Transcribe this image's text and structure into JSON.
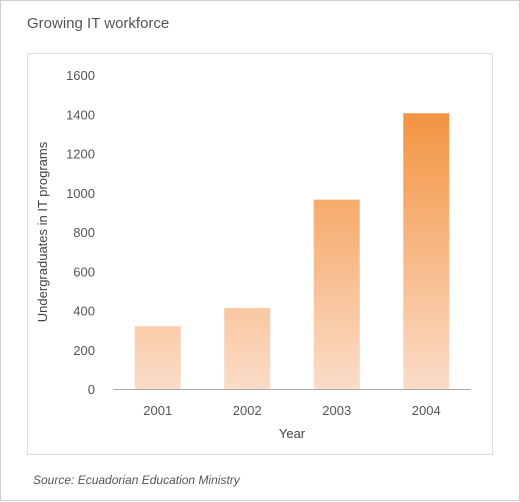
{
  "title": "Growing IT workforce",
  "source": "Source: Ecuadorian Education Ministry",
  "colors": {
    "bar_top": "#f28a2e",
    "bar_bottom": "#fbdcc8",
    "axis": "#aaaaaa",
    "text": "#555555"
  },
  "chart_data": {
    "type": "bar",
    "title": "Growing IT workforce",
    "xlabel": "Year",
    "ylabel": "Undergraduates in IT programs",
    "categories": [
      "2001",
      "2002",
      "2003",
      "2004"
    ],
    "values": [
      320,
      412,
      965,
      1405
    ],
    "ylim": [
      0,
      1600
    ],
    "yticks": [
      0,
      200,
      400,
      600,
      800,
      1000,
      1200,
      1400,
      1600
    ],
    "grid": false,
    "legend": "none"
  }
}
